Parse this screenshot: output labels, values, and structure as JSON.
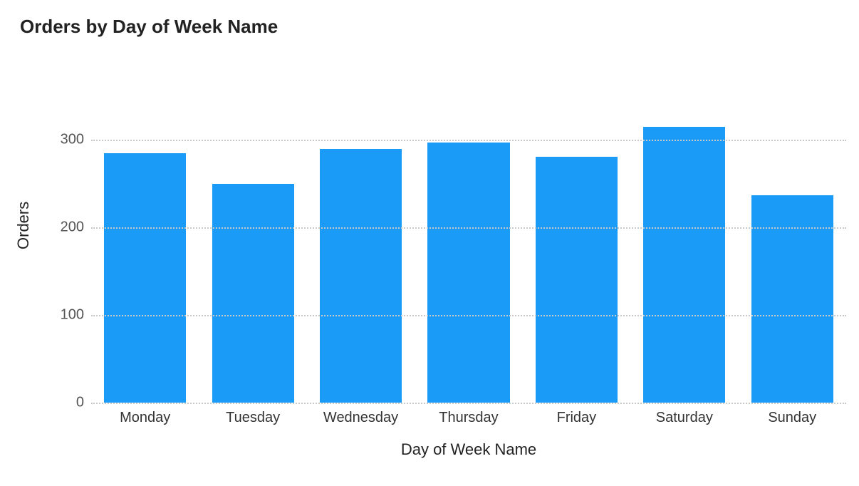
{
  "chart": {
    "type": "bar",
    "title": "Orders by Day of Week Name",
    "title_fontsize": 26,
    "title_fontweight": 600,
    "x_axis_title": "Day of Week Name",
    "y_axis_title": "Orders",
    "axis_title_fontsize": 22,
    "tick_label_fontsize": 20,
    "categories": [
      "Monday",
      "Tuesday",
      "Wednesday",
      "Thursday",
      "Friday",
      "Saturday",
      "Sunday"
    ],
    "values": [
      285,
      250,
      290,
      297,
      281,
      315,
      237
    ],
    "bar_color": "#1a9bf7",
    "background_color": "#ffffff",
    "grid_color": "#c8c8c8",
    "grid_style": "dotted",
    "y_ticks": [
      0,
      100,
      200,
      300
    ],
    "ylim": [
      0,
      350
    ],
    "bar_width_ratio": 0.76,
    "text_color": "#222222",
    "tick_color": "#555555"
  }
}
